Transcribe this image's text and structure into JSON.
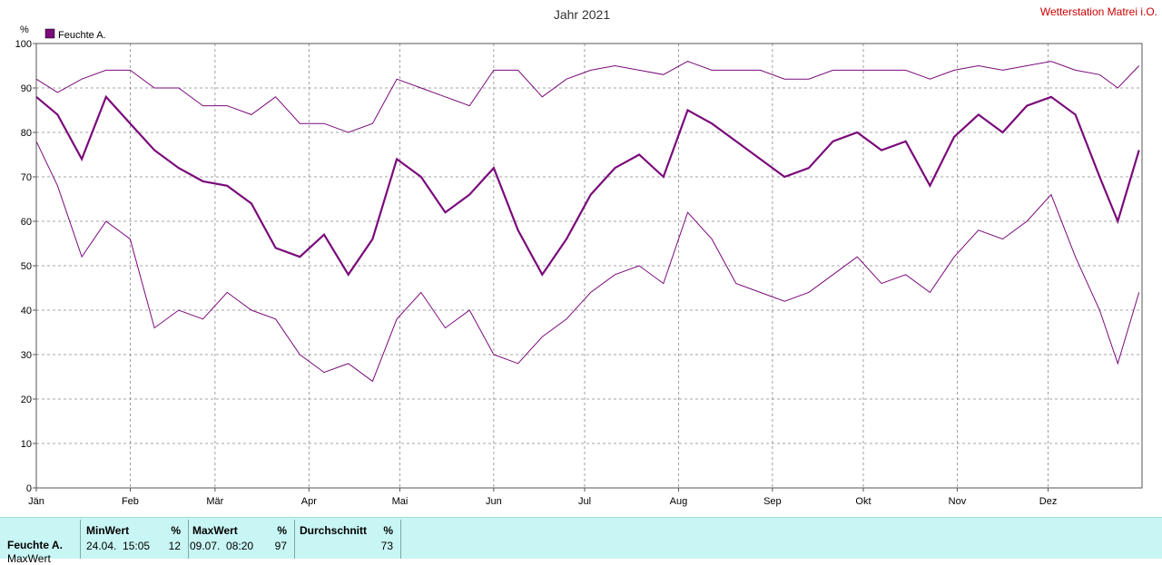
{
  "chart_data": {
    "type": "line",
    "title": "Jahr 2021",
    "station": "Wetterstation Matrei i.O.",
    "unit": "%",
    "ylim": [
      0,
      100
    ],
    "yticks": [
      0,
      10,
      20,
      30,
      40,
      50,
      60,
      70,
      80,
      90,
      100
    ],
    "months": [
      "Jän",
      "Feb",
      "Mär",
      "Apr",
      "Mai",
      "Jun",
      "Jul",
      "Aug",
      "Sep",
      "Okt",
      "Nov",
      "Dez"
    ],
    "month_start_day": [
      1,
      32,
      60,
      91,
      121,
      152,
      182,
      213,
      244,
      274,
      305,
      335
    ],
    "xlim_days": [
      1,
      366
    ],
    "grid": true,
    "legend": {
      "position": "top-left",
      "entries": [
        "Feuchte A."
      ]
    },
    "colors": {
      "series": "#7a0a7a",
      "grid": "#888888",
      "title": "#333333",
      "station": "#cc0000"
    },
    "series": [
      {
        "name": "Feuchte A.",
        "x": [
          1,
          8,
          16,
          24,
          32,
          40,
          48,
          56,
          64,
          72,
          80,
          88,
          96,
          104,
          112,
          120,
          128,
          136,
          144,
          152,
          160,
          168,
          176,
          184,
          192,
          200,
          208,
          216,
          224,
          232,
          240,
          248,
          256,
          264,
          272,
          280,
          288,
          296,
          304,
          312,
          320,
          328,
          336,
          344,
          352,
          358,
          365
        ],
        "avg": [
          88,
          84,
          74,
          88,
          82,
          76,
          72,
          69,
          68,
          64,
          54,
          52,
          57,
          48,
          56,
          74,
          70,
          62,
          66,
          72,
          58,
          48,
          56,
          66,
          72,
          75,
          70,
          85,
          82,
          78,
          74,
          70,
          72,
          78,
          80,
          76,
          78,
          68,
          79,
          84,
          80,
          86,
          88,
          84,
          70,
          60,
          76
        ],
        "max": [
          92,
          89,
          92,
          94,
          94,
          90,
          90,
          86,
          86,
          84,
          88,
          82,
          82,
          80,
          82,
          92,
          90,
          88,
          86,
          94,
          94,
          88,
          92,
          94,
          95,
          94,
          93,
          96,
          94,
          94,
          94,
          92,
          92,
          94,
          94,
          94,
          94,
          92,
          94,
          95,
          94,
          95,
          96,
          94,
          93,
          90,
          95
        ],
        "min": [
          78,
          68,
          52,
          60,
          56,
          36,
          40,
          38,
          44,
          40,
          38,
          30,
          26,
          28,
          24,
          38,
          44,
          36,
          40,
          30,
          28,
          34,
          38,
          44,
          48,
          50,
          46,
          62,
          56,
          46,
          44,
          42,
          44,
          48,
          52,
          46,
          48,
          44,
          52,
          58,
          56,
          60,
          66,
          52,
          40,
          28,
          44
        ]
      }
    ]
  },
  "summary": {
    "row_label": "Feuchte A.",
    "row_label_2": "MaxWert",
    "min_header": "MinWert",
    "min_unit": "%",
    "min_date": "24.04.  15:05",
    "min_value": "12",
    "max_header": "MaxWert",
    "max_unit": "%",
    "max_date": "09.07.  08:20",
    "max_value": "97",
    "avg_header": "Durchschnitt",
    "avg_unit": "%",
    "avg_value": "73"
  }
}
